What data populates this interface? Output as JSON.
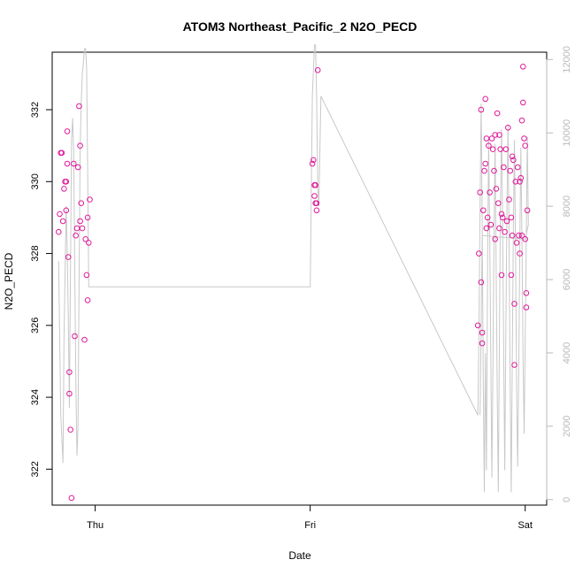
{
  "chart_data": {
    "type": "scatter",
    "title": "ATOM3 Northeast_Pacific_2 N2O_PECD",
    "xlabel": "Date",
    "ylabel": "N2O_PECD",
    "x_units": "days since Thu 00:00",
    "x_ticks": [
      {
        "value": 0,
        "label": "Thu"
      },
      {
        "value": 1,
        "label": "Fri"
      },
      {
        "value": 2,
        "label": "Sat"
      }
    ],
    "xlim": [
      -0.2,
      2.1
    ],
    "ylim": [
      321,
      333.6
    ],
    "y_ticks": [
      322,
      324,
      326,
      328,
      330,
      332
    ],
    "y2lim": [
      -150,
      12200
    ],
    "y2_ticks": [
      0,
      2000,
      4000,
      6000,
      8000,
      10000,
      12000
    ],
    "grid": false,
    "colors": {
      "points": "#e0199a",
      "line": "#c8c8c8",
      "axis": "#000000",
      "axis_right": "#b8b8b8"
    },
    "series": [
      {
        "role": "scatter",
        "axis": "left",
        "points": [
          [
            -0.17,
            328.6
          ],
          [
            -0.165,
            329.1
          ],
          [
            -0.16,
            330.8
          ],
          [
            -0.155,
            330.8
          ],
          [
            -0.15,
            328.9
          ],
          [
            -0.145,
            329.8
          ],
          [
            -0.14,
            330.0
          ],
          [
            -0.135,
            330.0
          ],
          [
            -0.135,
            329.2
          ],
          [
            -0.13,
            331.4
          ],
          [
            -0.13,
            330.5
          ],
          [
            -0.125,
            327.9
          ],
          [
            -0.12,
            324.7
          ],
          [
            -0.12,
            324.1
          ],
          [
            -0.115,
            323.1
          ],
          [
            -0.11,
            321.2
          ],
          [
            -0.1,
            330.5
          ],
          [
            -0.095,
            325.7
          ],
          [
            -0.09,
            328.5
          ],
          [
            -0.085,
            328.7
          ],
          [
            -0.08,
            330.4
          ],
          [
            -0.075,
            332.1
          ],
          [
            -0.07,
            331.0
          ],
          [
            -0.07,
            328.9
          ],
          [
            -0.065,
            329.4
          ],
          [
            -0.06,
            328.7
          ],
          [
            -0.05,
            325.6
          ],
          [
            -0.045,
            328.4
          ],
          [
            -0.04,
            327.4
          ],
          [
            -0.035,
            326.7
          ],
          [
            -0.035,
            329.0
          ],
          [
            -0.03,
            328.3
          ],
          [
            -0.025,
            329.5
          ],
          [
            1.01,
            330.5
          ],
          [
            1.015,
            330.6
          ],
          [
            1.02,
            329.9
          ],
          [
            1.02,
            329.6
          ],
          [
            1.025,
            329.4
          ],
          [
            1.025,
            329.9
          ],
          [
            1.03,
            329.2
          ],
          [
            1.03,
            329.4
          ],
          [
            1.035,
            333.1
          ],
          [
            1.78,
            326.0
          ],
          [
            1.785,
            328.0
          ],
          [
            1.79,
            329.7
          ],
          [
            1.795,
            332.0
          ],
          [
            1.795,
            327.2
          ],
          [
            1.8,
            325.8
          ],
          [
            1.8,
            325.5
          ],
          [
            1.805,
            329.2
          ],
          [
            1.81,
            330.3
          ],
          [
            1.815,
            332.3
          ],
          [
            1.815,
            330.5
          ],
          [
            1.82,
            331.2
          ],
          [
            1.82,
            328.7
          ],
          [
            1.825,
            329.0
          ],
          [
            1.83,
            331.0
          ],
          [
            1.835,
            329.7
          ],
          [
            1.84,
            328.8
          ],
          [
            1.845,
            331.2
          ],
          [
            1.85,
            330.9
          ],
          [
            1.855,
            330.3
          ],
          [
            1.86,
            331.3
          ],
          [
            1.86,
            328.4
          ],
          [
            1.865,
            329.8
          ],
          [
            1.87,
            331.9
          ],
          [
            1.875,
            329.4
          ],
          [
            1.88,
            331.3
          ],
          [
            1.88,
            328.7
          ],
          [
            1.885,
            330.9
          ],
          [
            1.89,
            329.1
          ],
          [
            1.89,
            327.4
          ],
          [
            1.895,
            329.0
          ],
          [
            1.9,
            330.4
          ],
          [
            1.905,
            328.6
          ],
          [
            1.91,
            330.9
          ],
          [
            1.915,
            328.9
          ],
          [
            1.92,
            331.5
          ],
          [
            1.925,
            329.5
          ],
          [
            1.93,
            330.3
          ],
          [
            1.935,
            329.0
          ],
          [
            1.935,
            327.4
          ],
          [
            1.94,
            330.7
          ],
          [
            1.94,
            328.5
          ],
          [
            1.945,
            330.6
          ],
          [
            1.95,
            326.6
          ],
          [
            1.95,
            324.9
          ],
          [
            1.955,
            330.0
          ],
          [
            1.96,
            328.3
          ],
          [
            1.965,
            330.4
          ],
          [
            1.97,
            328.5
          ],
          [
            1.975,
            330.0
          ],
          [
            1.975,
            328.0
          ],
          [
            1.98,
            330.1
          ],
          [
            1.985,
            331.7
          ],
          [
            1.985,
            328.5
          ],
          [
            1.99,
            333.2
          ],
          [
            1.99,
            332.2
          ],
          [
            1.995,
            331.2
          ],
          [
            2.0,
            331.0
          ],
          [
            2.0,
            328.4
          ],
          [
            2.005,
            326.9
          ],
          [
            2.005,
            326.5
          ],
          [
            2.01,
            329.2
          ]
        ]
      },
      {
        "role": "line",
        "axis": "right",
        "points": [
          [
            -0.17,
            6500
          ],
          [
            -0.16,
            2300
          ],
          [
            -0.15,
            1000
          ],
          [
            -0.145,
            4500
          ],
          [
            -0.14,
            6200
          ],
          [
            -0.135,
            8000
          ],
          [
            -0.13,
            6800
          ],
          [
            -0.125,
            5000
          ],
          [
            -0.12,
            2500
          ],
          [
            -0.115,
            6300
          ],
          [
            -0.11,
            9800
          ],
          [
            -0.105,
            10400
          ],
          [
            -0.1,
            9500
          ],
          [
            -0.095,
            6300
          ],
          [
            -0.09,
            3300
          ],
          [
            -0.085,
            1200
          ],
          [
            -0.08,
            2000
          ],
          [
            -0.075,
            6000
          ],
          [
            -0.07,
            9600
          ],
          [
            -0.065,
            10800
          ],
          [
            -0.06,
            11600
          ],
          [
            -0.055,
            11900
          ],
          [
            -0.05,
            12300
          ],
          [
            -0.045,
            12300
          ],
          [
            -0.04,
            11800
          ],
          [
            -0.035,
            9000
          ],
          [
            -0.03,
            5800
          ],
          [
            0.0,
            5800
          ],
          [
            1.0,
            5800
          ],
          [
            1.01,
            11000
          ],
          [
            1.02,
            12400
          ],
          [
            1.025,
            12400
          ],
          [
            1.03,
            11000
          ],
          [
            1.035,
            8500
          ],
          [
            1.04,
            8000
          ],
          [
            1.05,
            11000
          ],
          [
            1.78,
            2300
          ],
          [
            1.785,
            4500
          ],
          [
            1.79,
            8000
          ],
          [
            1.795,
            10800
          ],
          [
            1.8,
            7500
          ],
          [
            1.805,
            3200
          ],
          [
            1.81,
            200
          ],
          [
            1.815,
            4000
          ],
          [
            1.82,
            800
          ],
          [
            1.825,
            6500
          ],
          [
            1.83,
            9800
          ],
          [
            1.835,
            7200
          ],
          [
            1.84,
            4000
          ],
          [
            1.845,
            600
          ],
          [
            1.85,
            3500
          ],
          [
            1.855,
            7400
          ],
          [
            1.86,
            9700
          ],
          [
            1.865,
            6200
          ],
          [
            1.87,
            2900
          ],
          [
            1.875,
            200
          ],
          [
            1.88,
            4200
          ],
          [
            1.885,
            8000
          ],
          [
            1.89,
            10100
          ],
          [
            1.895,
            7500
          ],
          [
            1.9,
            4000
          ],
          [
            1.905,
            800
          ],
          [
            1.91,
            4500
          ],
          [
            1.915,
            7800
          ],
          [
            1.92,
            10200
          ],
          [
            1.925,
            6800
          ],
          [
            1.93,
            3200
          ],
          [
            1.935,
            200
          ],
          [
            1.94,
            3800
          ],
          [
            1.945,
            7300
          ],
          [
            1.95,
            9800
          ],
          [
            1.955,
            6800
          ],
          [
            1.96,
            3000
          ],
          [
            1.965,
            900
          ],
          [
            1.97,
            3500
          ],
          [
            1.975,
            6900
          ],
          [
            1.98,
            9600
          ],
          [
            1.985,
            7200
          ],
          [
            1.99,
            3800
          ],
          [
            1.995,
            1800
          ],
          [
            2.0,
            4300
          ],
          [
            2.005,
            7000
          ],
          [
            2.01,
            9900
          ],
          [
            2.015,
            7500
          ],
          [
            2.0,
            7100
          ],
          [
            1.8,
            7200
          ],
          [
            1.79,
            2300
          ]
        ]
      }
    ]
  }
}
